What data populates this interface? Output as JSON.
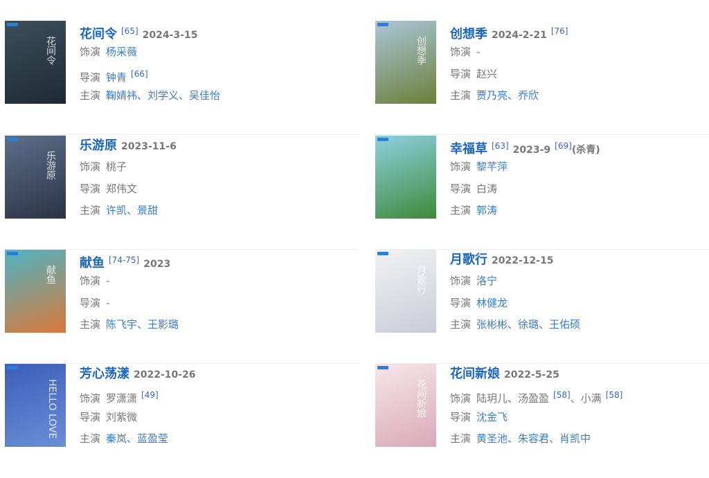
{
  "labels": {
    "role": "饰演",
    "director": "导演",
    "cast": "主演"
  },
  "items": [
    {
      "title": "花间令",
      "poster_colors": [
        "#3c4f5c",
        "#1d2a33"
      ],
      "poster_glyph": "花间令",
      "header": [
        {
          "t": "[65]",
          "k": "ref"
        },
        {
          "t": "2024-3-15",
          "k": "date"
        }
      ],
      "role": [
        {
          "t": "杨采薇",
          "link": true
        }
      ],
      "director": [
        {
          "t": "钟青",
          "link": true
        },
        {
          "t": "[66]",
          "k": "ref"
        }
      ],
      "cast": [
        {
          "t": "鞠婧祎、刘学义、吴佳怡",
          "link": true
        }
      ]
    },
    {
      "title": "创想季",
      "poster_colors": [
        "#a9c6d8",
        "#6b7f3a"
      ],
      "poster_glyph": "创想季",
      "header": [
        {
          "t": "2024-2-21",
          "k": "date"
        },
        {
          "t": "[76]",
          "k": "ref"
        }
      ],
      "role": [
        {
          "t": "-",
          "link": false
        }
      ],
      "director": [
        {
          "t": "赵兴",
          "link": false
        }
      ],
      "cast": [
        {
          "t": "贾乃亮、乔欣",
          "link": true
        }
      ]
    },
    {
      "title": "乐游原",
      "poster_colors": [
        "#5d6f8a",
        "#2b3446"
      ],
      "poster_glyph": "乐游原",
      "header": [
        {
          "t": "2023-11-6",
          "k": "date"
        }
      ],
      "role": [
        {
          "t": "桃子",
          "link": false
        }
      ],
      "director": [
        {
          "t": "郑伟文",
          "link": false
        }
      ],
      "cast": [
        {
          "t": "许凯、景甜",
          "link": true
        }
      ]
    },
    {
      "title": "幸福草",
      "poster_colors": [
        "#8fcfe0",
        "#3e8a3a"
      ],
      "poster_glyph": "",
      "header": [
        {
          "t": "[63]",
          "k": "ref"
        },
        {
          "t": "2023-9",
          "k": "date"
        },
        {
          "t": "[69]",
          "k": "ref"
        },
        {
          "t": "(杀青)",
          "k": "note"
        }
      ],
      "role": [
        {
          "t": "黎芊萍",
          "link": true
        }
      ],
      "director": [
        {
          "t": "白涛",
          "link": false
        }
      ],
      "cast": [
        {
          "t": "郭涛",
          "link": true
        }
      ]
    },
    {
      "title": "献鱼",
      "poster_colors": [
        "#4fb3c4",
        "#d9783a"
      ],
      "poster_glyph": "献鱼",
      "header": [
        {
          "t": "[74-75]",
          "k": "ref"
        },
        {
          "t": "2023",
          "k": "date"
        }
      ],
      "role": [
        {
          "t": "-",
          "link": false
        }
      ],
      "director": [
        {
          "t": "-",
          "link": false
        }
      ],
      "cast": [
        {
          "t": "陈飞宇、王影璐",
          "link": true
        }
      ]
    },
    {
      "title": "月歌行",
      "poster_colors": [
        "#f2f2f4",
        "#c9ccd6"
      ],
      "poster_glyph": "月歌行",
      "header": [
        {
          "t": "2022-12-15",
          "k": "date"
        }
      ],
      "role": [
        {
          "t": "洛宁",
          "link": true
        }
      ],
      "director": [
        {
          "t": "林健龙",
          "link": true
        }
      ],
      "cast": [
        {
          "t": "张彬彬、徐璐、王佑硕",
          "link": true
        }
      ]
    },
    {
      "title": "芳心荡漾",
      "poster_colors": [
        "#3c5fb8",
        "#6a8fd6"
      ],
      "poster_glyph": "HELLO LOVE",
      "header": [
        {
          "t": "2022-10-26",
          "k": "date"
        }
      ],
      "role": [
        {
          "t": "罗潇潇",
          "link": false
        },
        {
          "t": "[49]",
          "k": "ref"
        }
      ],
      "director": [
        {
          "t": "刘紫微",
          "link": false
        }
      ],
      "cast": [
        {
          "t": "秦岚、蓝盈莹",
          "link": true
        }
      ]
    },
    {
      "title": "花间新娘",
      "poster_colors": [
        "#f6e6ea",
        "#d8a9b8"
      ],
      "poster_glyph": "花间新娘",
      "header": [
        {
          "t": "2022-5-25",
          "k": "date"
        }
      ],
      "role": [
        {
          "t": "陆玥儿、汤盈盈",
          "link": false
        },
        {
          "t": "[58]",
          "k": "ref"
        },
        {
          "t": "、小满",
          "link": false
        },
        {
          "t": "[58]",
          "k": "ref"
        }
      ],
      "director": [
        {
          "t": "沈金飞",
          "link": true
        }
      ],
      "cast": [
        {
          "t": "黄圣池、朱容君、肖凯中",
          "link": true
        }
      ]
    }
  ]
}
